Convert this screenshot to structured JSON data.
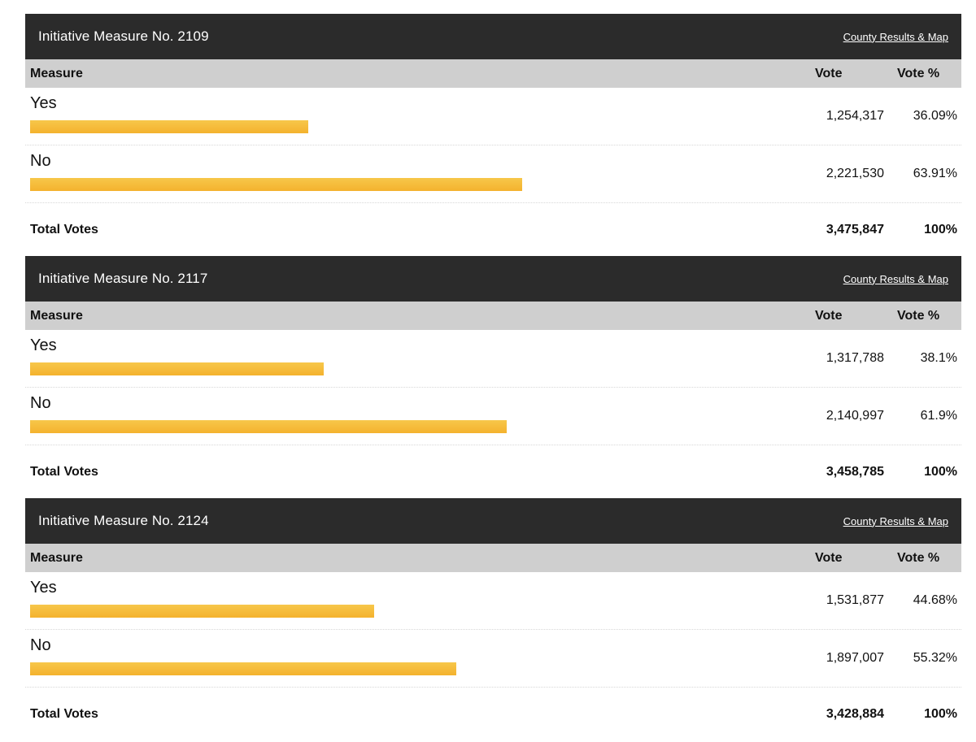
{
  "measures": [
    {
      "title": "Initiative Measure No. 2109",
      "link": "County Results & Map",
      "headers": {
        "measure": "Measure",
        "vote": "Vote",
        "vote_pct": "Vote %"
      },
      "options": [
        {
          "label": "Yes",
          "vote": "1,254,317",
          "pct": "36.09%",
          "share": 36.09
        },
        {
          "label": "No",
          "vote": "2,221,530",
          "pct": "63.91%",
          "share": 63.91
        }
      ],
      "total_label": "Total Votes",
      "total_vote": "3,475,847",
      "total_pct": "100%"
    },
    {
      "title": "Initiative Measure No. 2117",
      "link": "County Results & Map",
      "headers": {
        "measure": "Measure",
        "vote": "Vote",
        "vote_pct": "Vote %"
      },
      "options": [
        {
          "label": "Yes",
          "vote": "1,317,788",
          "pct": "38.1%",
          "share": 38.1
        },
        {
          "label": "No",
          "vote": "2,140,997",
          "pct": "61.9%",
          "share": 61.9
        }
      ],
      "total_label": "Total Votes",
      "total_vote": "3,458,785",
      "total_pct": "100%"
    },
    {
      "title": "Initiative Measure No. 2124",
      "link": "County Results & Map",
      "headers": {
        "measure": "Measure",
        "vote": "Vote",
        "vote_pct": "Vote %"
      },
      "options": [
        {
          "label": "Yes",
          "vote": "1,531,877",
          "pct": "44.68%",
          "share": 44.68
        },
        {
          "label": "No",
          "vote": "1,897,007",
          "pct": "55.32%",
          "share": 55.32
        }
      ],
      "total_label": "Total Votes",
      "total_vote": "3,428,884",
      "total_pct": "100%"
    }
  ],
  "colors": {
    "header_bg": "#2b2b2b",
    "column_header_bg": "#cfcfcf",
    "bar_top": "#f7c74a",
    "bar_bottom": "#f4b22e"
  }
}
